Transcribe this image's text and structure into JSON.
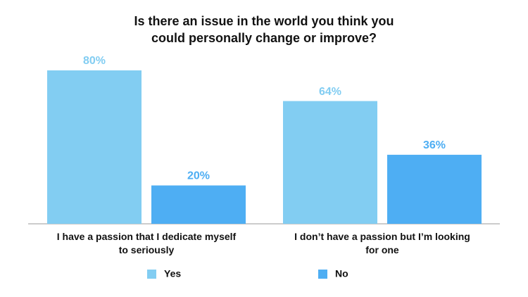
{
  "chart_data": {
    "type": "bar",
    "title": "Is there an issue in the world you think you could personally change or improve?",
    "categories": [
      "I have a passion that I dedicate myself to seriously",
      "I don’t have a passion but I’m looking for one"
    ],
    "series": [
      {
        "name": "Yes",
        "color": "#82cdf2",
        "values": [
          80,
          64
        ],
        "value_labels": [
          "80%",
          "64%"
        ]
      },
      {
        "name": "No",
        "color": "#4eaef3",
        "values": [
          20,
          36
        ],
        "value_labels": [
          "20%",
          "36%"
        ]
      }
    ]
  }
}
